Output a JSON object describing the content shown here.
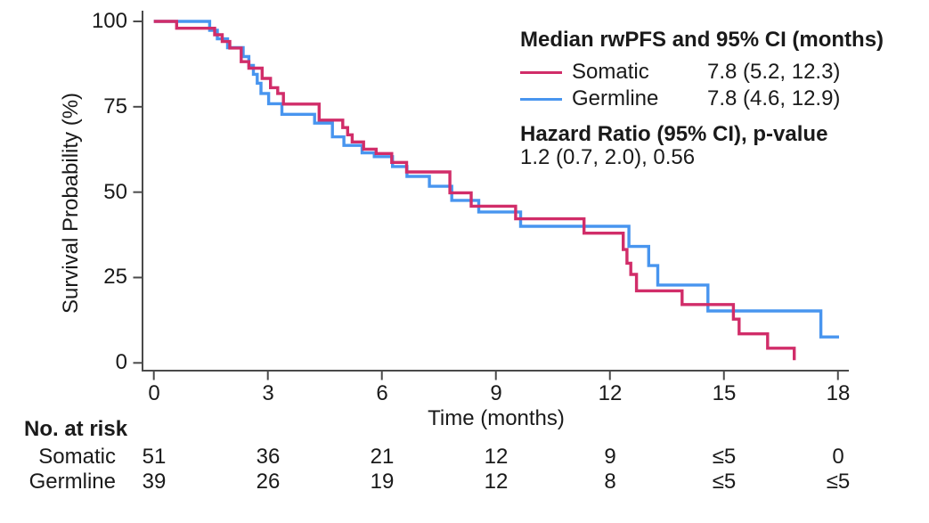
{
  "chart_data": {
    "type": "line",
    "subtype": "kaplan-meier-step",
    "title": "",
    "xlabel": "Time (months)",
    "ylabel": "Survival Probability (%)",
    "xlim": [
      0,
      18.2
    ],
    "ylim": [
      0,
      100
    ],
    "x_ticks": [
      0,
      3,
      6,
      9,
      12,
      15,
      18
    ],
    "y_ticks": [
      0,
      25,
      50,
      75,
      100
    ],
    "grid": false,
    "legend_position": "top-right",
    "axis_color": "#4a4a4a",
    "text_color": "#1a1a1a",
    "series": [
      {
        "name": "Somatic",
        "color": "#D12D69",
        "median_label": "7.8 (5.2, 12.3)",
        "points": [
          [
            0,
            100
          ],
          [
            0.6,
            98
          ],
          [
            1.6,
            96.1
          ],
          [
            1.8,
            94.1
          ],
          [
            2.0,
            92.2
          ],
          [
            2.3,
            88.2
          ],
          [
            2.5,
            86.3
          ],
          [
            2.85,
            83.3
          ],
          [
            3.07,
            80.6
          ],
          [
            3.26,
            78.9
          ],
          [
            3.41,
            75.8
          ],
          [
            4.35,
            71.1
          ],
          [
            4.97,
            68.9
          ],
          [
            5.1,
            66.8
          ],
          [
            5.22,
            64.7
          ],
          [
            5.52,
            62.6
          ],
          [
            5.85,
            61.3
          ],
          [
            6.26,
            58.7
          ],
          [
            6.65,
            55.9
          ],
          [
            7.79,
            49.8
          ],
          [
            8.35,
            45.9
          ],
          [
            9.52,
            42.2
          ],
          [
            11.32,
            38.0
          ],
          [
            12.35,
            33.2
          ],
          [
            12.45,
            29.2
          ],
          [
            12.55,
            25.9
          ],
          [
            12.7,
            21.1
          ],
          [
            13.9,
            17.1
          ],
          [
            15.25,
            12.8
          ],
          [
            15.4,
            8.5
          ],
          [
            16.15,
            4.3
          ],
          [
            16.85,
            0.8
          ]
        ]
      },
      {
        "name": "Germline",
        "color": "#4895EF",
        "median_label": "7.8 (4.6, 12.9)",
        "points": [
          [
            0,
            100
          ],
          [
            1.47,
            97.4
          ],
          [
            1.67,
            94.9
          ],
          [
            1.94,
            92.3
          ],
          [
            2.35,
            89.7
          ],
          [
            2.5,
            87.1
          ],
          [
            2.62,
            84.5
          ],
          [
            2.72,
            81.9
          ],
          [
            2.82,
            78.9
          ],
          [
            3.02,
            75.9
          ],
          [
            3.37,
            72.8
          ],
          [
            4.23,
            70.2
          ],
          [
            4.7,
            66.2
          ],
          [
            5.0,
            63.7
          ],
          [
            5.48,
            61.5
          ],
          [
            5.8,
            60.4
          ],
          [
            6.28,
            57.5
          ],
          [
            6.66,
            54.6
          ],
          [
            7.25,
            51.7
          ],
          [
            7.84,
            47.6
          ],
          [
            8.55,
            44.2
          ],
          [
            9.65,
            40.0
          ],
          [
            12.5,
            34.1
          ],
          [
            13.02,
            28.5
          ],
          [
            13.26,
            22.8
          ],
          [
            14.58,
            15.2
          ],
          [
            17.55,
            7.6
          ],
          [
            18.03,
            7.6
          ]
        ]
      }
    ],
    "legend": {
      "title": "Median rwPFS and 95% CI (months)",
      "hazard_title": "Hazard Ratio (95% CI), p-value",
      "hazard_value": "1.2 (0.7, 2.0), 0.56"
    },
    "risk_table": {
      "title": "No. at risk",
      "time_points": [
        0,
        3,
        6,
        9,
        12,
        15,
        18
      ],
      "rows": [
        {
          "name": "Somatic",
          "values": [
            "51",
            "36",
            "21",
            "12",
            "9",
            "≤5",
            "0"
          ]
        },
        {
          "name": "Germline",
          "values": [
            "39",
            "26",
            "19",
            "12",
            "8",
            "≤5",
            "≤5"
          ]
        }
      ]
    }
  }
}
